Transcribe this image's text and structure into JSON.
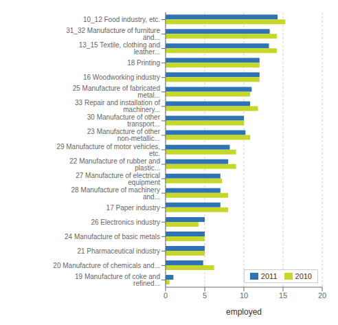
{
  "chart_data": {
    "type": "bar",
    "orientation": "horizontal",
    "categories": [
      "19 Manufacture of coke and refined...",
      "20 Manufacture of chemicals and...",
      "21 Pharmaceutical industry",
      "24 Manufacture of basic metals",
      "26 Electronics industry",
      "17 Paper industry",
      "28 Manufacture of machinery and...",
      "27 Manufacture of electrical equipment",
      "22 Manufacture of rubber and plastic...",
      "29 Manufacture of motor vehicles, etc.",
      "23 Manufacture of other non-metallic...",
      "30 Manufacture of other transport...",
      "33 Repair and installation of machinery...",
      "25 Manufacture of fabricated metal...",
      "16 Woodworking industry",
      "18 Printing",
      "13_15 Textile, clothing and  leather...",
      "31_32 Manufacture of furniture and...",
      "10_12 Food industry, etc."
    ],
    "series": [
      {
        "name": "2011",
        "color": "#2E74B5",
        "values": [
          1.0,
          4.8,
          5.0,
          5.0,
          5.0,
          7.0,
          7.0,
          7.0,
          8.0,
          8.2,
          10.2,
          10.0,
          10.8,
          11.0,
          12.0,
          12.0,
          13.2,
          13.3,
          14.3
        ]
      },
      {
        "name": "2010",
        "color": "#C5D829",
        "values": [
          0.5,
          6.2,
          5.0,
          5.0,
          4.2,
          8.0,
          8.0,
          7.2,
          9.0,
          9.0,
          10.8,
          10.0,
          11.8,
          10.8,
          12.0,
          12.0,
          14.2,
          14.2,
          15.3
        ]
      }
    ],
    "xlabel": "employed",
    "xlim": [
      0,
      20
    ],
    "xticks": [
      0,
      5,
      10,
      15,
      20
    ],
    "grid": true,
    "legend": "lower right"
  }
}
